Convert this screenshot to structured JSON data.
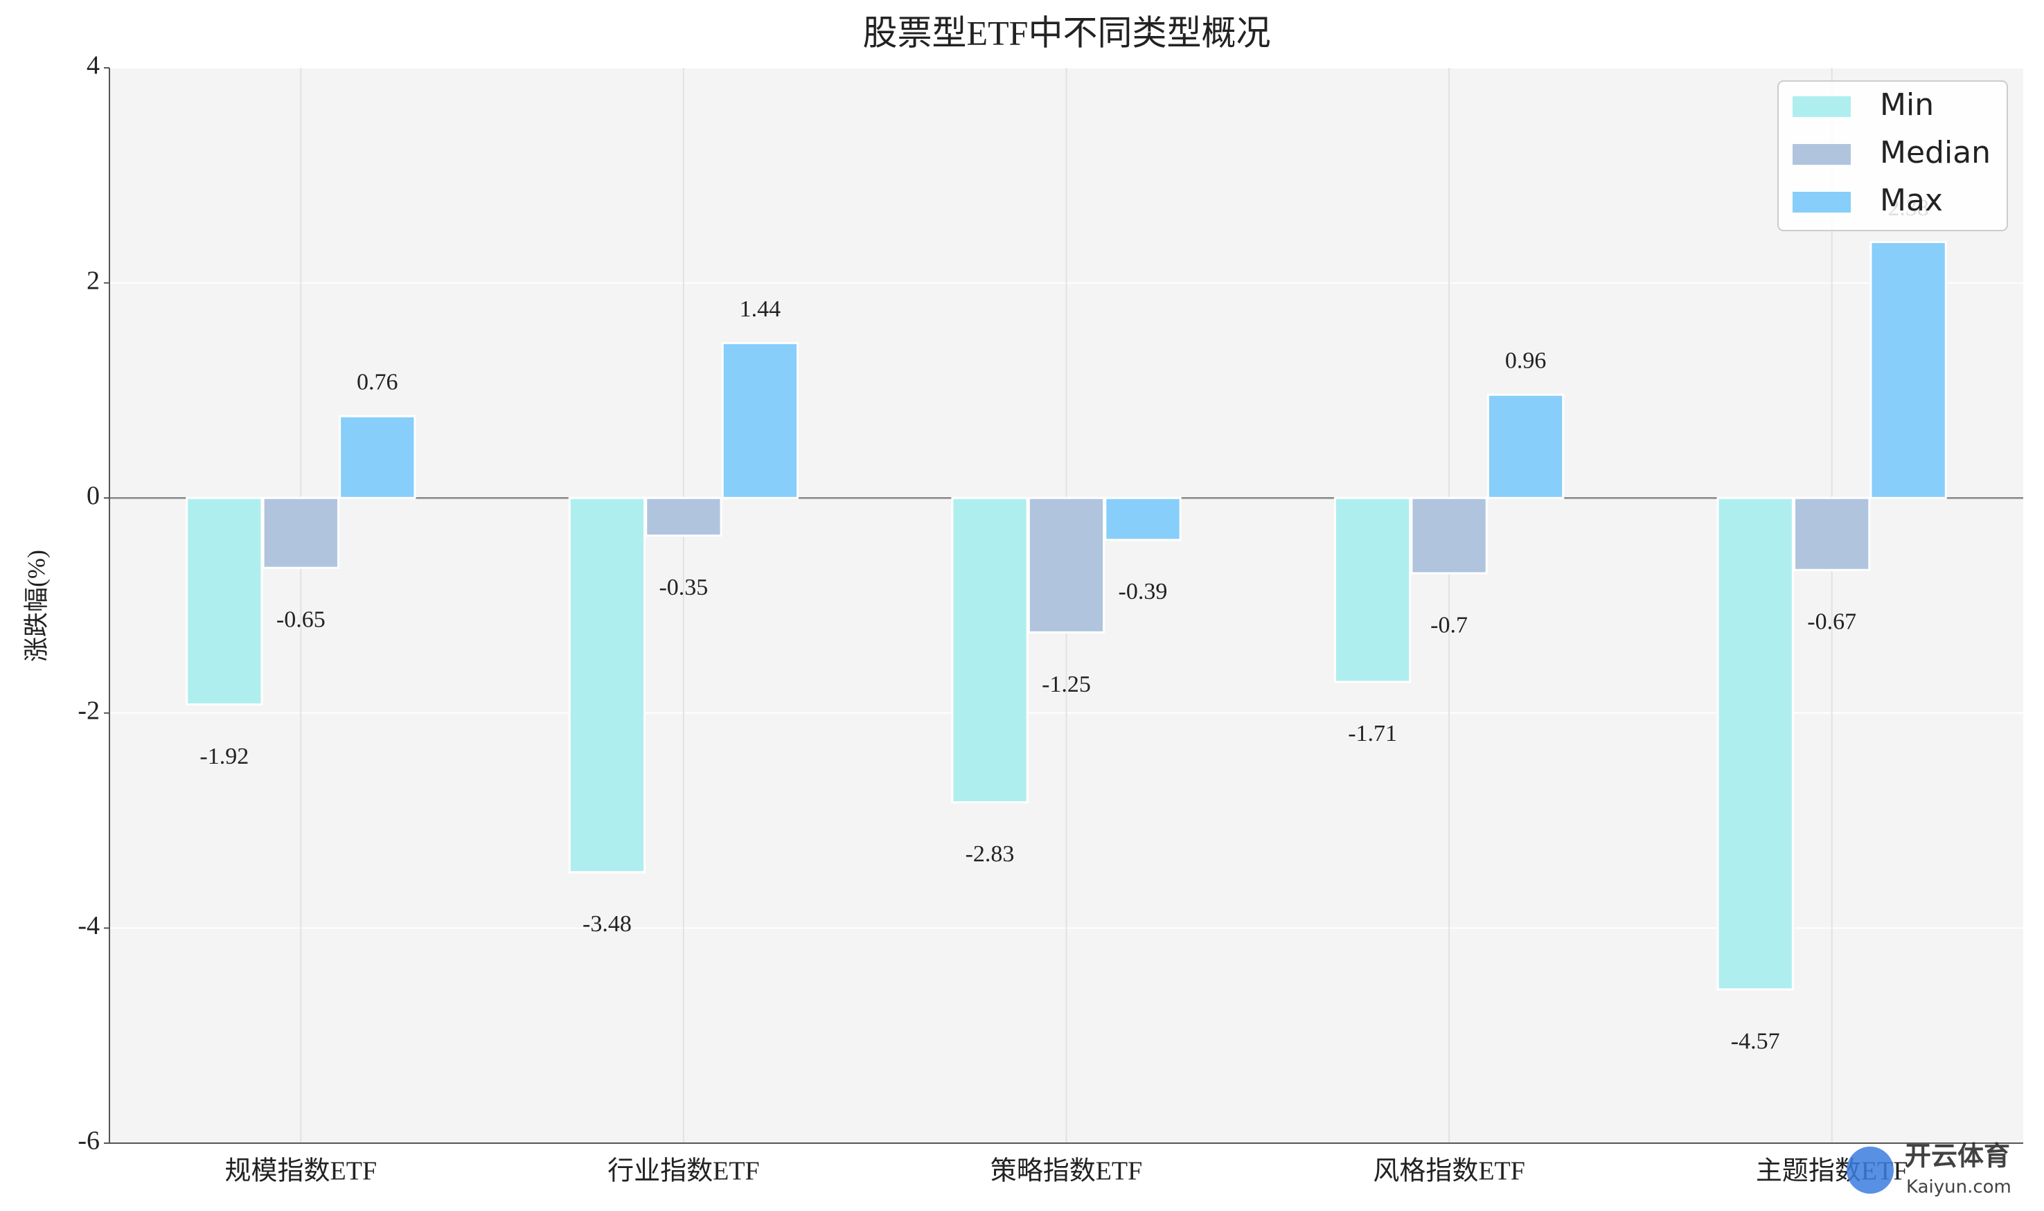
{
  "chart_data": {
    "type": "bar",
    "title": "股票型ETF中不同类型概况",
    "y_label": "涨跌幅(%)",
    "categories": [
      "规模指数ETF",
      "行业指数ETF",
      "策略指数ETF",
      "风格指数ETF",
      "主题指数ETF"
    ],
    "series": [
      {
        "name": "Min",
        "color": "#afeeee",
        "values": [
          -1.92,
          -3.48,
          -2.83,
          -1.71,
          -4.57
        ]
      },
      {
        "name": "Median",
        "color": "#b0c4de",
        "values": [
          -0.65,
          -0.35,
          -1.25,
          -0.7,
          -0.67
        ]
      },
      {
        "name": "Max",
        "color": "#87cefa",
        "values": [
          0.76,
          1.44,
          -0.39,
          0.96,
          2.38
        ]
      }
    ],
    "ylim": [
      -6,
      4
    ],
    "yticks": [
      -6,
      -4,
      -2,
      0,
      2,
      4
    ],
    "grid": true,
    "legend": "upper right"
  },
  "watermark": [
    "开云体育",
    "Kaiyun.com"
  ]
}
